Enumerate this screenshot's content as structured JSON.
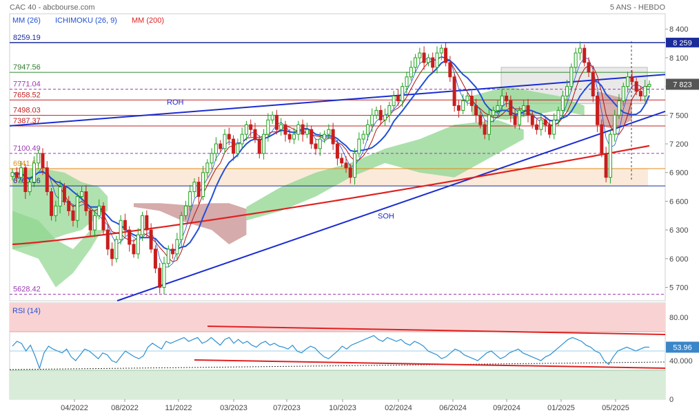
{
  "header": {
    "title": "CAC 40 - abcbourse.com",
    "period": "5 ANS - HEBDO"
  },
  "legend": [
    {
      "label": "MM (26)",
      "color": "#1f4fd8"
    },
    {
      "label": "ICHIMOKU (26, 9)",
      "color": "#1f4fd8"
    },
    {
      "label": "MM (200)",
      "color": "#e02020"
    }
  ],
  "colors": {
    "up": "#1aa01a",
    "down": "#c81e1e",
    "mm26": "#1f4fd8",
    "mm200": "#e02020",
    "kijun": "#b01010",
    "tenkan": "#1f4fd8",
    "cloud_bull": "#8fd68f",
    "cloud_bear": "#c78f8f",
    "trendline": "#1a2bd0",
    "rsi_line": "#2a8fd0",
    "rsi_top_zone": "#f9d3d3",
    "rsi_bottom_zone": "#d9ecd9"
  },
  "chart_data": {
    "type": "candlestick",
    "x_ticks": [
      "04/2022",
      "08/2022",
      "11/2022",
      "03/2023",
      "07/2023",
      "10/2023",
      "02/2024",
      "06/2024",
      "09/2024",
      "01/2025",
      "05/2025"
    ],
    "y_ticks": [
      "8 400",
      "8 100",
      "7 800",
      "7 500",
      "7 200",
      "6 900",
      "6 600",
      "6 300",
      "6 000",
      "5 700"
    ],
    "y_tick_values": [
      8400,
      8100,
      7800,
      7500,
      7200,
      6900,
      6600,
      6300,
      6000,
      5700
    ],
    "last_price": "7 823",
    "last_value": 7823,
    "level_badge": "8 259",
    "levels": [
      {
        "label": "8259.19",
        "value": 8259.19,
        "style": "solid",
        "color": "#1a2b9a",
        "label_color": "#1a2b9a"
      },
      {
        "label": "7947.56",
        "value": 7947.56,
        "style": "solid",
        "color": "#2e8b2e",
        "label_color": "#2e7d2e"
      },
      {
        "label": "7771.04",
        "value": 7771.04,
        "style": "dashed",
        "color": "#9a3ab0",
        "label_color": "#9a3ab0"
      },
      {
        "label": "7658.52",
        "value": 7658.52,
        "style": "solid",
        "color": "#c02020",
        "label_color": "#c02020"
      },
      {
        "label": "7498.03",
        "value": 7498.03,
        "style": "solid",
        "color": "#c02020",
        "label_color": "#c02020"
      },
      {
        "label": "7387.37",
        "value": 7387.37,
        "style": "solid",
        "color": "#c02020",
        "label_color": "#c02020"
      },
      {
        "label": "7100.49",
        "value": 7100.49,
        "style": "dashed",
        "color": "#9a3ab0",
        "label_color": "#9a3ab0"
      },
      {
        "label": "6941.57",
        "value": 6941.57,
        "style": "solid",
        "color": "#e08a1a",
        "label_color": "#e08a1a"
      },
      {
        "label": "6760.26",
        "value": 6760.26,
        "style": "solid",
        "color": "#1a2b9a",
        "label_color": "#1a2b9a"
      },
      {
        "label": "5628.42",
        "value": 5628.42,
        "style": "dashed",
        "color": "#9a3ab0",
        "label_color": "#9a3ab0"
      }
    ],
    "annotations": [
      {
        "text": "ROH",
        "value": 7640
      },
      {
        "text": "SOH",
        "value": 6450
      }
    ],
    "close_series": [
      6900,
      6850,
      6950,
      6700,
      6800,
      7000,
      7100,
      6950,
      6700,
      6450,
      6550,
      6750,
      6600,
      6500,
      6400,
      6650,
      6700,
      6500,
      6300,
      6450,
      6550,
      6300,
      6100,
      6000,
      6200,
      6400,
      6300,
      6150,
      6050,
      6250,
      6450,
      6300,
      6100,
      5900,
      5700,
      5950,
      6100,
      6050,
      6200,
      6450,
      6550,
      6700,
      6800,
      6650,
      6900,
      7000,
      7100,
      7200,
      7150,
      7300,
      7250,
      7100,
      7200,
      7300,
      7400,
      7350,
      7250,
      7100,
      7300,
      7450,
      7500,
      7350,
      7400,
      7300,
      7250,
      7300,
      7400,
      7300,
      7350,
      7200,
      7150,
      7250,
      7300,
      7350,
      7200,
      7050,
      7000,
      6950,
      6850,
      7100,
      7250,
      7300,
      7400,
      7500,
      7550,
      7450,
      7500,
      7600,
      7700,
      7650,
      7800,
      7900,
      8000,
      8100,
      8150,
      8050,
      8100,
      8000,
      8150,
      8200,
      8050,
      7900,
      7600,
      7550,
      7650,
      7700,
      7600,
      7500,
      7400,
      7300,
      7500,
      7550,
      7600,
      7700,
      7650,
      7500,
      7400,
      7550,
      7600,
      7500,
      7400,
      7350,
      7450,
      7400,
      7300,
      7450,
      7550,
      7700,
      7800,
      8000,
      8150,
      8200,
      8050,
      7950,
      7700,
      7400,
      7100,
      6850,
      7300,
      7500,
      7650,
      7800,
      7900,
      7850,
      7750,
      7700,
      7800,
      7823
    ]
  },
  "rsi": {
    "label": "RSI (14)",
    "y_ticks": [
      "80.00",
      "40.000",
      "0"
    ],
    "y_tick_values": [
      80,
      40,
      0
    ],
    "last_value_label": "53.96",
    "last_value": 53.96,
    "upper_zone": 70,
    "lower_zone": 30,
    "ref_level": 40,
    "values": [
      55,
      60,
      58,
      50,
      56,
      45,
      32,
      48,
      55,
      52,
      50,
      48,
      52,
      44,
      40,
      46,
      52,
      50,
      46,
      42,
      48,
      46,
      40,
      38,
      44,
      50,
      47,
      44,
      42,
      45,
      54,
      58,
      55,
      52,
      60,
      58,
      60,
      62,
      64,
      60,
      62,
      64,
      58,
      60,
      64,
      60,
      56,
      62,
      64,
      58,
      62,
      58,
      60,
      56,
      54,
      58,
      60,
      56,
      58,
      55,
      54,
      52,
      56,
      50,
      48,
      52,
      55,
      53,
      48,
      44,
      42,
      46,
      50,
      55,
      52,
      56,
      58,
      60,
      62,
      64,
      66,
      62,
      60,
      64,
      62,
      60,
      62,
      58,
      56,
      60,
      58,
      55,
      50,
      48,
      46,
      42,
      44,
      48,
      52,
      50,
      46,
      44,
      42,
      40,
      44,
      48,
      50,
      46,
      42,
      44,
      48,
      50,
      52,
      48,
      46,
      44,
      42,
      40,
      44,
      46,
      50,
      54,
      58,
      62,
      64,
      62,
      60,
      56,
      54,
      50,
      48,
      40,
      36,
      44,
      50,
      52,
      54,
      52,
      50,
      52,
      54,
      53.96
    ]
  }
}
